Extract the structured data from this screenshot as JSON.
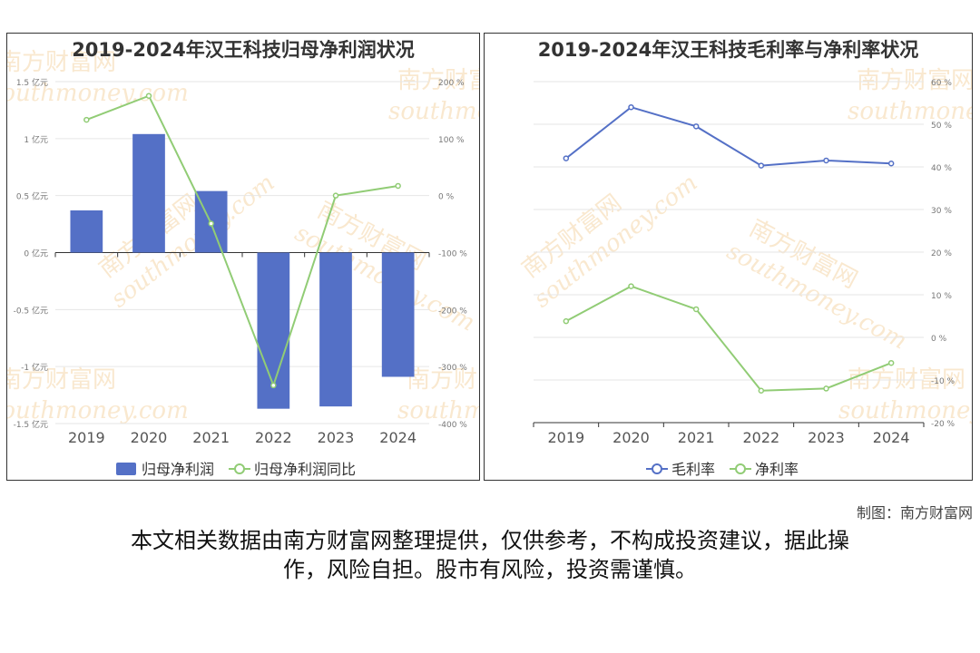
{
  "credit": "制图：南方财富网",
  "disclaimer_line1": "本文相关数据由南方财富网整理提供，仅供参考，不构成投资建议，据此操",
  "disclaimer_line2": "作，风险自担。股市有风险，投资需谨慎。",
  "watermark": {
    "cn": "南方财富网",
    "en": "southmoney.com"
  },
  "colors": {
    "bar": "#5470c6",
    "line_green": "#91cc75",
    "line_blue": "#5470c6",
    "watermark": "#f5d6a8"
  },
  "chart_data": [
    {
      "type": "bar",
      "title": "2019-2024年汉王科技归母净利润状况",
      "categories": [
        "2019",
        "2020",
        "2021",
        "2022",
        "2023",
        "2024"
      ],
      "left_axis": {
        "ticks": [
          1.5,
          1,
          0.5,
          0,
          -0.5,
          -1,
          -1.5
        ],
        "tick_labels": [
          "1.5 亿元",
          "1 亿元",
          "0.5 亿元",
          "0 亿元",
          "-0.5 亿元",
          "-1 亿元",
          "-1.5 亿元"
        ],
        "range": [
          -1.5,
          1.5
        ]
      },
      "right_axis": {
        "ticks": [
          200,
          100,
          0,
          -100,
          -200,
          -300,
          -400
        ],
        "tick_labels": [
          "200 %",
          "100 %",
          "0 %",
          "-100 %",
          "-200 %",
          "-300 %",
          "-400 %"
        ],
        "range": [
          -400,
          200
        ]
      },
      "series": [
        {
          "name": "归母净利润",
          "kind": "bar",
          "axis": "left",
          "values": [
            0.37,
            1.04,
            0.54,
            -1.37,
            -1.35,
            -1.09
          ]
        },
        {
          "name": "归母净利润同比",
          "kind": "line",
          "axis": "right",
          "values": [
            133,
            175,
            -49,
            -333,
            0,
            17
          ]
        }
      ],
      "legend": "bottom",
      "grid": true
    },
    {
      "type": "line",
      "title": "2019-2024年汉王科技毛利率与净利率状况",
      "categories": [
        "2019",
        "2020",
        "2021",
        "2022",
        "2023",
        "2024"
      ],
      "right_axis": {
        "ticks": [
          60,
          50,
          40,
          30,
          20,
          10,
          0,
          -10,
          -20
        ],
        "tick_labels": [
          "60 %",
          "50 %",
          "40 %",
          "30 %",
          "20 %",
          "10 %",
          "0 %",
          "-10 %",
          "-20 %"
        ],
        "range": [
          -20,
          60
        ]
      },
      "series": [
        {
          "name": "毛利率",
          "kind": "line",
          "values": [
            42,
            54,
            49.5,
            40.3,
            41.5,
            40.8
          ]
        },
        {
          "name": "净利率",
          "kind": "line",
          "values": [
            3.8,
            12,
            6.6,
            -12.5,
            -12,
            -6
          ]
        }
      ],
      "legend": "bottom",
      "grid": true
    }
  ]
}
